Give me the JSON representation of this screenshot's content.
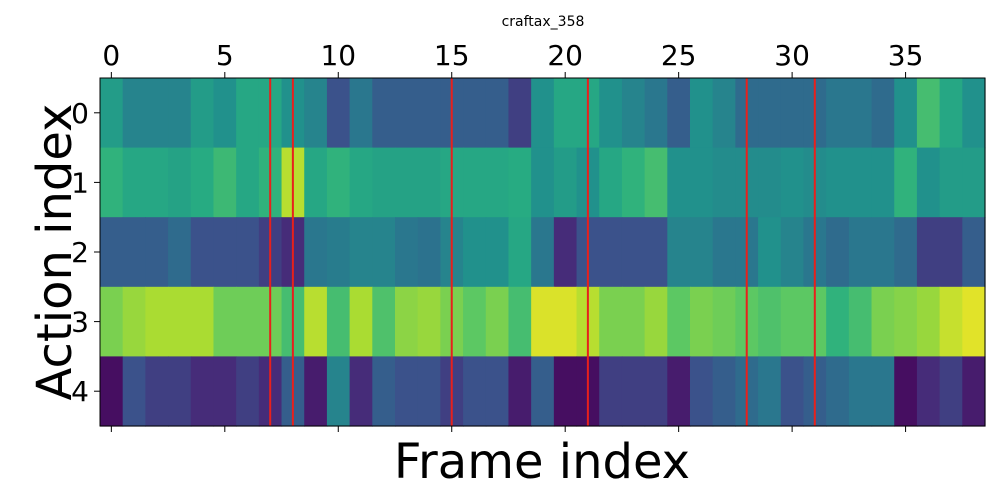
{
  "chart_data": {
    "type": "heatmap",
    "title": "craftax_358",
    "xlabel": "Frame index",
    "ylabel": "Action index",
    "x_ticks": [
      0,
      5,
      10,
      15,
      20,
      25,
      30,
      35
    ],
    "y_ticks": [
      0,
      1,
      2,
      3,
      4
    ],
    "x_tick_position": "top",
    "n_frames": 39,
    "n_actions": 5,
    "colormap": "viridis",
    "vmin": 0.0,
    "vmax": 1.0,
    "values": [
      [
        0.55,
        0.45,
        0.45,
        0.45,
        0.55,
        0.5,
        0.6,
        0.6,
        0.5,
        0.45,
        0.25,
        0.4,
        0.3,
        0.3,
        0.3,
        0.3,
        0.3,
        0.3,
        0.2,
        0.5,
        0.6,
        0.6,
        0.5,
        0.45,
        0.4,
        0.3,
        0.5,
        0.45,
        0.35,
        0.35,
        0.35,
        0.35,
        0.4,
        0.4,
        0.35,
        0.5,
        0.7,
        0.6,
        0.5
      ],
      [
        0.65,
        0.6,
        0.6,
        0.58,
        0.62,
        0.68,
        0.6,
        0.65,
        0.9,
        0.6,
        0.65,
        0.6,
        0.58,
        0.58,
        0.58,
        0.6,
        0.6,
        0.6,
        0.62,
        0.5,
        0.55,
        0.5,
        0.6,
        0.65,
        0.7,
        0.5,
        0.5,
        0.48,
        0.48,
        0.48,
        0.5,
        0.48,
        0.5,
        0.5,
        0.5,
        0.65,
        0.5,
        0.55,
        0.55
      ],
      [
        0.3,
        0.3,
        0.3,
        0.35,
        0.25,
        0.25,
        0.25,
        0.2,
        0.15,
        0.4,
        0.42,
        0.45,
        0.45,
        0.4,
        0.38,
        0.45,
        0.5,
        0.5,
        0.6,
        0.4,
        0.15,
        0.25,
        0.25,
        0.25,
        0.25,
        0.45,
        0.45,
        0.4,
        0.4,
        0.5,
        0.45,
        0.4,
        0.35,
        0.4,
        0.4,
        0.35,
        0.2,
        0.2,
        0.3
      ],
      [
        0.8,
        0.85,
        0.88,
        0.88,
        0.88,
        0.78,
        0.78,
        0.78,
        0.7,
        0.9,
        0.7,
        0.88,
        0.72,
        0.83,
        0.85,
        0.8,
        0.75,
        0.8,
        0.7,
        0.95,
        0.95,
        0.9,
        0.8,
        0.8,
        0.85,
        0.75,
        0.8,
        0.78,
        0.75,
        0.72,
        0.75,
        0.75,
        0.65,
        0.7,
        0.8,
        0.82,
        0.85,
        0.92,
        0.96
      ],
      [
        0.05,
        0.25,
        0.2,
        0.2,
        0.15,
        0.15,
        0.2,
        0.15,
        0.3,
        0.1,
        0.45,
        0.15,
        0.3,
        0.25,
        0.25,
        0.2,
        0.25,
        0.25,
        0.1,
        0.3,
        0.05,
        0.05,
        0.2,
        0.2,
        0.2,
        0.1,
        0.25,
        0.3,
        0.35,
        0.4,
        0.25,
        0.3,
        0.35,
        0.4,
        0.4,
        0.05,
        0.15,
        0.2,
        0.1
      ]
    ],
    "markers": {
      "type": "vertical-lines",
      "color": "#e8201c",
      "x": [
        7,
        8,
        15,
        21,
        28,
        31
      ]
    }
  }
}
